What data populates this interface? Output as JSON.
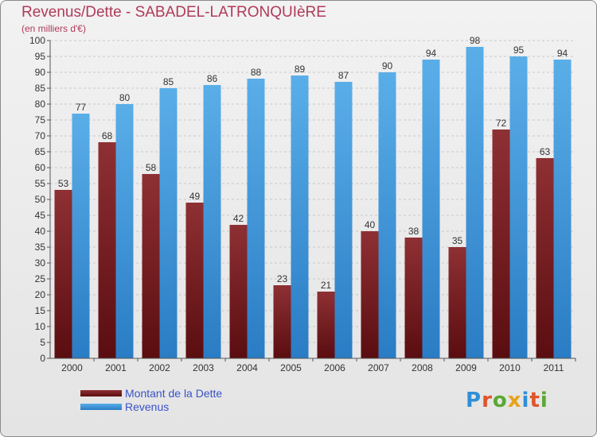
{
  "title": "Revenus/Dette - SABADEL-LATRONQUIèRE",
  "subtitle": "(en milliers d'€)",
  "logo_text": "Proxiti",
  "colors": {
    "title": "#b03a5a",
    "dette": "#7a1c1e",
    "revenus": "#4aa3e0",
    "legend_text": "#3a52c8",
    "logo_letters": [
      "#2e8fd8",
      "#e0542a",
      "#5aa832",
      "#e8a21a",
      "#2e8fd8",
      "#e0542a",
      "#5aa832"
    ]
  },
  "chart_data": {
    "type": "bar",
    "title": "Revenus/Dette - SABADEL-LATRONQUIèRE",
    "subtitle": "(en milliers d'€)",
    "categories": [
      "2000",
      "2001",
      "2002",
      "2003",
      "2004",
      "2005",
      "2006",
      "2007",
      "2008",
      "2009",
      "2010",
      "2011"
    ],
    "series": [
      {
        "name": "Montant de la Dette",
        "values": [
          53,
          68,
          58,
          49,
          42,
          23,
          21,
          40,
          38,
          35,
          72,
          63
        ]
      },
      {
        "name": "Revenus",
        "values": [
          77,
          80,
          85,
          86,
          88,
          89,
          87,
          90,
          94,
          98,
          95,
          94
        ]
      }
    ],
    "ylim": [
      0,
      100
    ],
    "yticks": [
      0,
      5,
      10,
      15,
      20,
      25,
      30,
      35,
      40,
      45,
      50,
      55,
      60,
      65,
      70,
      75,
      80,
      85,
      90,
      95,
      100
    ],
    "grid": true,
    "legend": "bottom-left",
    "data_labels": true
  }
}
